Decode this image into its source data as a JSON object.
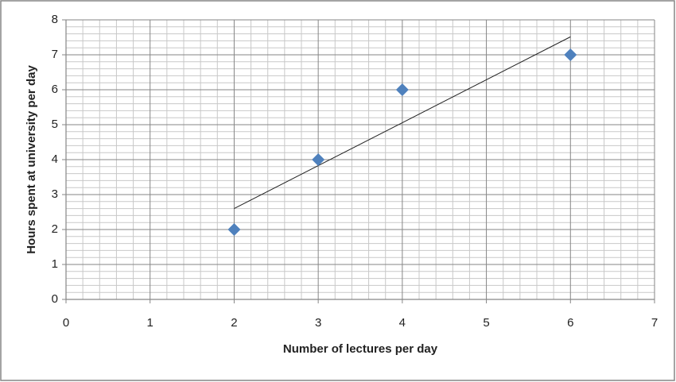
{
  "chart_data": {
    "type": "scatter",
    "x_label": "Number of lectures per day",
    "y_label": "Hours spent at university per day",
    "series": [
      {
        "x": [
          2,
          3,
          4,
          6
        ],
        "values": [
          2,
          4,
          6,
          7
        ],
        "color": "#4f81bd",
        "marker": "diamond"
      }
    ],
    "trendline": "linear",
    "trendline_color": "#222222",
    "xlim": [
      0,
      7
    ],
    "xticks": [
      0,
      1,
      2,
      3,
      4,
      5,
      6,
      7
    ],
    "ylim": [
      0,
      8
    ],
    "yticks": [
      0,
      1,
      2,
      3,
      4,
      5,
      6,
      7,
      8
    ],
    "grid": true,
    "minor_grid": true,
    "minor_divisions": 5
  }
}
